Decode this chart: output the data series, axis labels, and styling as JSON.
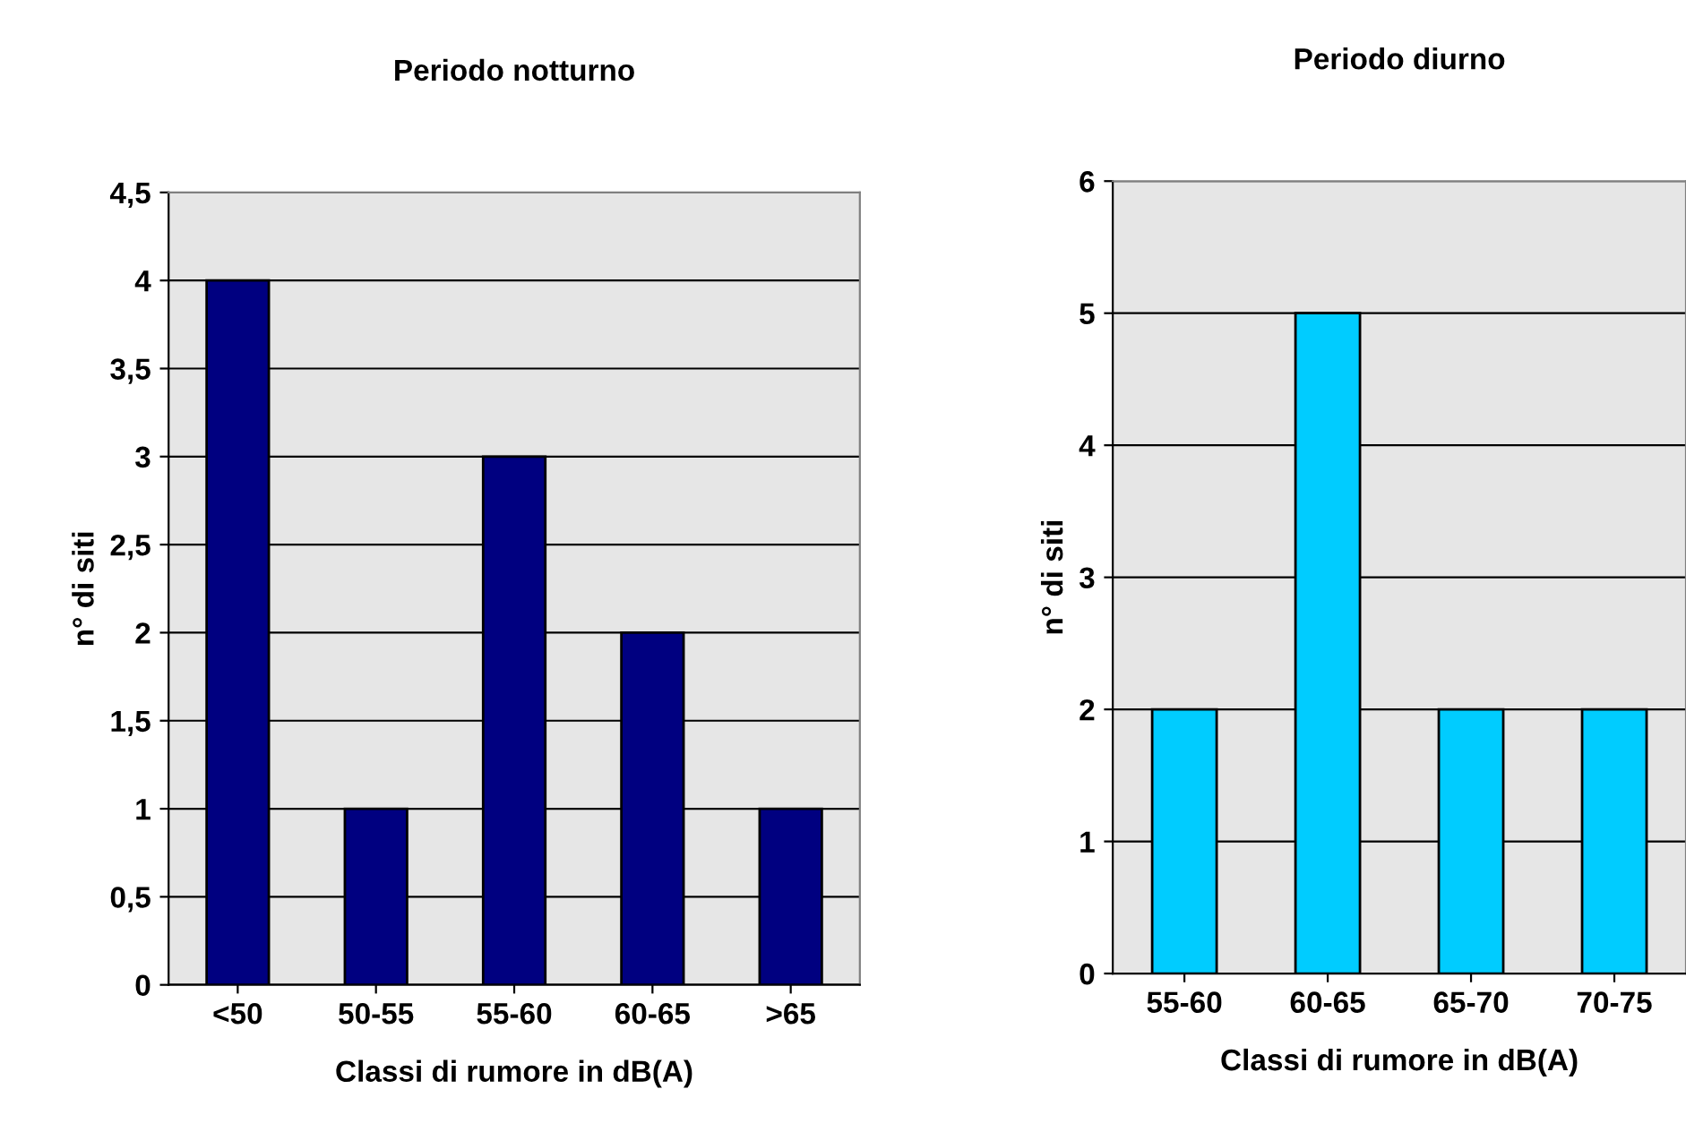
{
  "chart_data": [
    {
      "type": "bar",
      "title": "Periodo notturno",
      "xlabel": "Classi di rumore in dB(A)",
      "ylabel": "n° di siti",
      "categories": [
        "<50",
        "50-55",
        "55-60",
        "60-65",
        ">65"
      ],
      "series": [
        {
          "color": "#000080",
          "values": [
            4,
            1,
            3,
            2,
            1
          ]
        }
      ],
      "ylim": [
        0,
        4.5
      ],
      "yticks": [
        0,
        {
          "value": 0.5,
          "label": "0,5"
        },
        1,
        {
          "value": 1.5,
          "label": "1,5"
        },
        2,
        {
          "value": 2.5,
          "label": "2,5"
        },
        3,
        {
          "value": 3.5,
          "label": "3,5"
        },
        4,
        {
          "value": 4.5,
          "label": "4,5"
        }
      ],
      "grid": "y"
    },
    {
      "type": "bar",
      "title": "Periodo diurno",
      "xlabel": "Classi di rumore in dB(A)",
      "ylabel": "n° di siti",
      "categories": [
        "55-60",
        "60-65",
        "65-70",
        "70-75"
      ],
      "series": [
        {
          "color": "#00ccff",
          "values": [
            2,
            5,
            2,
            2
          ]
        }
      ],
      "ylim": [
        0,
        6
      ],
      "yticks": [
        0,
        1,
        2,
        3,
        4,
        5,
        6
      ],
      "grid": "y"
    }
  ]
}
